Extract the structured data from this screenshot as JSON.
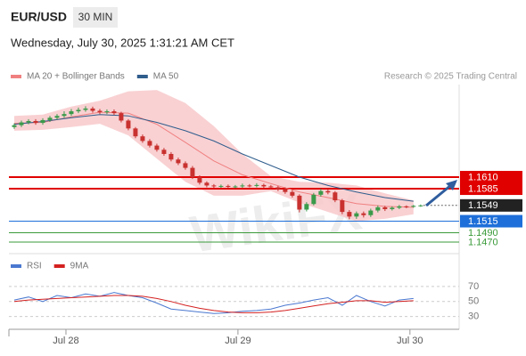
{
  "header": {
    "symbol": "EUR/USD",
    "timeframe": "30 MIN",
    "datetime": "Wednesday, July 30, 2025 1:31:21 AM CET",
    "watermark": "WikiFX"
  },
  "chart_data": [
    {
      "type": "candlestick",
      "legend": [
        {
          "name": "MA 20 + Bollinger Bands",
          "color": "#f08080"
        },
        {
          "name": "MA 50",
          "color": "#2f5d8c"
        }
      ],
      "credit": "Research © 2025 Trading Central",
      "up_color": "#3a9a4a",
      "down_color": "#c8312f",
      "xlim": [
        -0.75,
        62.4
      ],
      "ylim": [
        1.1445,
        1.1825
      ],
      "open": [
        1.1718,
        1.1722,
        1.1728,
        1.1731,
        1.1727,
        1.1733,
        1.1738,
        1.1742,
        1.1746,
        1.1752,
        1.1755,
        1.1758,
        1.1753,
        1.175,
        1.1752,
        1.1748,
        1.1732,
        1.1715,
        1.1698,
        1.1688,
        1.1678,
        1.1669,
        1.166,
        1.1648,
        1.164,
        1.163,
        1.161,
        1.1598,
        1.1592,
        1.159,
        1.1591,
        1.1589,
        1.159,
        1.1592,
        1.1591,
        1.1593,
        1.159,
        1.1588,
        1.1584,
        1.1578,
        1.157,
        1.154,
        1.1552,
        1.1572,
        1.158,
        1.1577,
        1.156,
        1.1535,
        1.1525,
        1.1532,
        1.1528,
        1.1538,
        1.1545,
        1.1541,
        1.1544,
        1.1547,
        1.1546,
        1.1548
      ],
      "high": [
        1.1726,
        1.1732,
        1.1735,
        1.1735,
        1.1737,
        1.1742,
        1.1746,
        1.1752,
        1.1757,
        1.176,
        1.1763,
        1.1762,
        1.1757,
        1.1756,
        1.1756,
        1.1751,
        1.1735,
        1.1718,
        1.1702,
        1.1692,
        1.1682,
        1.1673,
        1.1664,
        1.1652,
        1.1644,
        1.1634,
        1.1614,
        1.1601,
        1.1595,
        1.1594,
        1.1594,
        1.1593,
        1.1596,
        1.1595,
        1.1597,
        1.1596,
        1.1593,
        1.1591,
        1.1588,
        1.1582,
        1.1573,
        1.1556,
        1.1576,
        1.1585,
        1.1584,
        1.158,
        1.1563,
        1.1539,
        1.1536,
        1.1536,
        1.1542,
        1.1549,
        1.1548,
        1.1547,
        1.155,
        1.1549,
        1.155,
        1.1551
      ],
      "low": [
        1.1714,
        1.1718,
        1.1724,
        1.1723,
        1.1723,
        1.1729,
        1.1734,
        1.1738,
        1.1742,
        1.1748,
        1.1751,
        1.1749,
        1.1746,
        1.1746,
        1.1744,
        1.1728,
        1.1711,
        1.1694,
        1.1684,
        1.1674,
        1.1665,
        1.1656,
        1.1644,
        1.1636,
        1.1626,
        1.1606,
        1.1594,
        1.1588,
        1.1587,
        1.1587,
        1.1586,
        1.1586,
        1.1587,
        1.1588,
        1.1588,
        1.1587,
        1.1584,
        1.158,
        1.1574,
        1.1566,
        1.1534,
        1.1536,
        1.1549,
        1.1568,
        1.1573,
        1.1556,
        1.153,
        1.1519,
        1.152,
        1.1523,
        1.1524,
        1.1534,
        1.1537,
        1.1538,
        1.1541,
        1.1543,
        1.1544,
        1.1546
      ],
      "close": [
        1.1722,
        1.1728,
        1.1731,
        1.1727,
        1.1733,
        1.1738,
        1.1742,
        1.1746,
        1.1752,
        1.1755,
        1.1758,
        1.1753,
        1.175,
        1.1752,
        1.1748,
        1.1732,
        1.1715,
        1.1698,
        1.1688,
        1.1678,
        1.1669,
        1.166,
        1.1648,
        1.164,
        1.163,
        1.161,
        1.1598,
        1.1592,
        1.159,
        1.1591,
        1.1589,
        1.159,
        1.1592,
        1.1591,
        1.1593,
        1.159,
        1.1588,
        1.1584,
        1.1578,
        1.157,
        1.154,
        1.1552,
        1.1572,
        1.158,
        1.1577,
        1.156,
        1.1535,
        1.1525,
        1.1532,
        1.1528,
        1.1538,
        1.1545,
        1.1541,
        1.1544,
        1.1547,
        1.1546,
        1.1548,
        1.1549
      ],
      "band": {
        "color": "#f7c6c8",
        "x": [
          0,
          4,
          8,
          12,
          16,
          20,
          24,
          28,
          32,
          36,
          40,
          44,
          48,
          52,
          56
        ],
        "upper": [
          1.1742,
          1.1745,
          1.1762,
          1.1775,
          1.1795,
          1.1798,
          1.177,
          1.172,
          1.166,
          1.1612,
          1.16,
          1.1598,
          1.1592,
          1.1575,
          1.156
        ],
        "lower": [
          1.171,
          1.1712,
          1.1718,
          1.1725,
          1.17,
          1.165,
          1.16,
          1.157,
          1.157,
          1.158,
          1.1555,
          1.1535,
          1.1515,
          1.152,
          1.153
        ]
      },
      "series": [
        {
          "name": "MA 20",
          "color": "#f08080",
          "x": [
            0,
            4,
            8,
            12,
            16,
            20,
            24,
            28,
            32,
            36,
            40,
            44,
            48,
            52,
            56
          ],
          "values": [
            1.1726,
            1.1728,
            1.174,
            1.175,
            1.1748,
            1.1724,
            1.1685,
            1.1645,
            1.1615,
            1.1596,
            1.1578,
            1.1566,
            1.1553,
            1.1547,
            1.1545
          ]
        },
        {
          "name": "MA 50",
          "color": "#2f5d8c",
          "x": [
            0,
            4,
            8,
            12,
            16,
            20,
            24,
            28,
            32,
            36,
            40,
            44,
            48,
            52,
            56
          ],
          "values": [
            1.1724,
            1.173,
            1.1738,
            1.1745,
            1.1742,
            1.1728,
            1.171,
            1.1688,
            1.166,
            1.1635,
            1.161,
            1.1592,
            1.1578,
            1.1566,
            1.1558
          ]
        }
      ],
      "levels": [
        {
          "value": 1.161,
          "label": "1.1610",
          "color": "#e00000",
          "boxed": true,
          "width": 2
        },
        {
          "value": 1.1585,
          "label": "1.1585",
          "color": "#e00000",
          "boxed": true,
          "width": 2
        },
        {
          "value": 1.1549,
          "label": "1.1549",
          "color": "#222222",
          "boxed": true,
          "width": 1,
          "dotted": true
        },
        {
          "value": 1.1515,
          "label": "1.1515",
          "color": "#1e6fd9",
          "boxed": true,
          "width": 1
        },
        {
          "value": 1.149,
          "label": "1.1490",
          "color": "#3a9a3a",
          "boxed": false,
          "width": 1
        },
        {
          "value": 1.147,
          "label": "1.1470",
          "color": "#3a9a3a",
          "boxed": false,
          "width": 1
        }
      ]
    },
    {
      "type": "line",
      "xlim": [
        -0.75,
        62.4
      ],
      "ylim": [
        13,
        90
      ],
      "yticks": [
        70,
        50,
        30
      ],
      "xticks": [
        {
          "value": 7.25,
          "label": "Jul 28"
        },
        {
          "value": 31.375,
          "label": "Jul 29"
        },
        {
          "value": 55.5,
          "label": "Jul 30"
        }
      ],
      "series": [
        {
          "name": "RSI",
          "color": "#4a78d0",
          "x": [
            0,
            2,
            4,
            6,
            8,
            10,
            12,
            14,
            16,
            18,
            20,
            22,
            24,
            26,
            28,
            30,
            32,
            34,
            36,
            38,
            40,
            42,
            44,
            46,
            48,
            50,
            52,
            54,
            56
          ],
          "values": [
            52,
            56,
            50,
            58,
            55,
            60,
            57,
            62,
            58,
            55,
            48,
            40,
            38,
            36,
            34,
            35,
            37,
            38,
            40,
            45,
            48,
            52,
            55,
            45,
            58,
            50,
            44,
            52,
            54
          ]
        },
        {
          "name": "9MA",
          "color": "#d42020",
          "x": [
            0,
            2,
            4,
            6,
            8,
            10,
            12,
            14,
            16,
            18,
            20,
            22,
            24,
            26,
            28,
            30,
            32,
            34,
            36,
            38,
            40,
            42,
            44,
            46,
            48,
            50,
            52,
            54,
            56
          ],
          "values": [
            50,
            52,
            53,
            54,
            55,
            56,
            57,
            58,
            58,
            57,
            54,
            50,
            45,
            41,
            38,
            36,
            35,
            35,
            36,
            38,
            41,
            44,
            47,
            49,
            51,
            51,
            49,
            50,
            51
          ]
        }
      ]
    }
  ]
}
